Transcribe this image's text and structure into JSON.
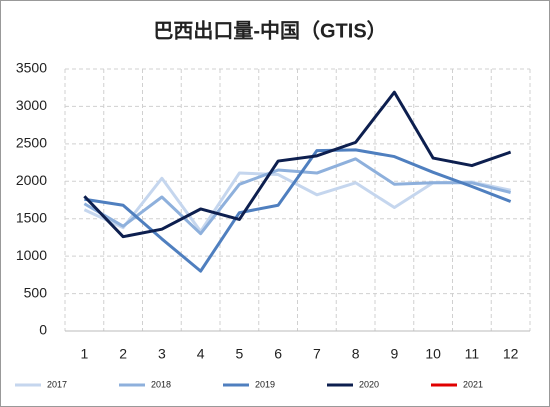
{
  "chart_data": {
    "type": "line",
    "title": "巴西出口量-中国（GTIS）",
    "categories": [
      "1",
      "2",
      "3",
      "4",
      "5",
      "6",
      "7",
      "8",
      "9",
      "10",
      "11",
      "12"
    ],
    "series": [
      {
        "name": "2017",
        "color": "#c5d6ee",
        "values": [
          1620,
          1380,
          2040,
          1330,
          2110,
          2090,
          1820,
          1980,
          1650,
          1980,
          1990,
          1880
        ]
      },
      {
        "name": "2018",
        "color": "#8eb0dc",
        "values": [
          1700,
          1400,
          1790,
          1300,
          1960,
          2150,
          2110,
          2300,
          1960,
          1980,
          1980,
          1850
        ]
      },
      {
        "name": "2019",
        "color": "#4f7fbf",
        "values": [
          1760,
          1680,
          1230,
          800,
          1580,
          1680,
          2410,
          2420,
          2330,
          2120,
          1930,
          1730
        ]
      },
      {
        "name": "2020",
        "color": "#0d1f4f",
        "values": [
          1800,
          1260,
          1360,
          1630,
          1490,
          2270,
          2340,
          2520,
          3190,
          2310,
          2210,
          2390
        ]
      },
      {
        "name": "2021",
        "color": "#e00000",
        "values": [
          null,
          null,
          null,
          null,
          null,
          null,
          null,
          null,
          null,
          null,
          null,
          null
        ]
      }
    ],
    "ylim": [
      0,
      3500
    ],
    "yticks": [
      0,
      500,
      1000,
      1500,
      2000,
      2500,
      3000,
      3500
    ],
    "grid": true
  }
}
